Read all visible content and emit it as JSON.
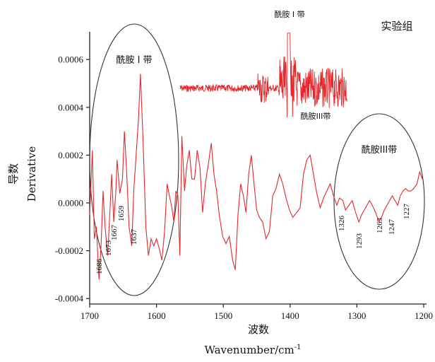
{
  "chart_data": {
    "type": "line",
    "title": "实验组",
    "xlabel_cn": "波数",
    "xlabel_en": "Wavenumber/cm",
    "xlabel_sup": "-1",
    "ylabel_cn": "导数",
    "ylabel_en": "Derivative",
    "xlim": [
      1700,
      1200
    ],
    "ylim": [
      -0.0004,
      0.0007
    ],
    "x_ticks": [
      1700,
      1600,
      1500,
      1400,
      1300,
      1200
    ],
    "x_tick_labels": [
      "1700",
      "1600",
      "1500",
      "1400",
      "1300",
      "1200"
    ],
    "y_ticks": [
      0.0006,
      0.0004,
      0.0002,
      0.0,
      -0.0002,
      -0.0004
    ],
    "y_tick_labels": [
      "0.0006",
      "0.0004",
      "0.0002",
      "0.0000",
      "-0.0002",
      "-0.0004"
    ],
    "line_color": "#e8262a",
    "series": [
      {
        "x": [
          1700,
          1696,
          1693,
          1690,
          1686,
          1683,
          1680,
          1677,
          1673,
          1670,
          1667,
          1664,
          1661,
          1659,
          1655,
          1651,
          1648,
          1645,
          1641,
          1637,
          1634,
          1630,
          1627,
          1624,
          1620,
          1616,
          1612,
          1608,
          1604,
          1600,
          1596,
          1592,
          1588,
          1584,
          1580,
          1577,
          1574,
          1571,
          1568,
          1565,
          1562,
          1558,
          1555,
          1551,
          1547,
          1543,
          1539,
          1535,
          1531,
          1527,
          1522,
          1518,
          1514,
          1510,
          1506,
          1501,
          1496,
          1491,
          1486,
          1482,
          1478,
          1474,
          1470,
          1466,
          1462,
          1458,
          1454,
          1450,
          1446,
          1441,
          1436,
          1431,
          1426,
          1421,
          1416,
          1411,
          1406,
          1401,
          1396,
          1390,
          1385,
          1380,
          1375,
          1370,
          1365,
          1360,
          1355,
          1350,
          1345,
          1340,
          1335,
          1330,
          1326,
          1321,
          1317,
          1312,
          1307,
          1302,
          1297,
          1293,
          1289,
          1285,
          1281,
          1277,
          1272,
          1267,
          1263,
          1259,
          1255,
          1251,
          1247,
          1243,
          1239,
          1235,
          1231,
          1227,
          1223,
          1219,
          1215,
          1210,
          1206,
          1202
        ],
        "y": [
          -5e-05,
          0.00022,
          -0.00015,
          -0.0001,
          -0.00032,
          -0.00018,
          5e-05,
          -0.0001,
          -0.00022,
          -5e-05,
          0.00012,
          -8e-05,
          4e-05,
          0.00018,
          4e-05,
          0.0001,
          0.0003,
          0.00015,
          -0.0001,
          -0.00018,
          5e-05,
          0.00022,
          0.00035,
          0.00054,
          0.00025,
          -0.0001,
          -0.00022,
          -0.00015,
          -0.00018,
          -0.00015,
          -0.00019,
          -0.00024,
          -0.00012,
          8e-05,
          2e-05,
          -2e-05,
          -8e-05,
          5e-05,
          3e-05,
          -0.00022,
          0.00028,
          5e-05,
          0.00015,
          0.00022,
          0.0001,
          0.0001,
          0.00022,
          0.00015,
          -4e-05,
          8e-05,
          0.00017,
          0.00025,
          0.00012,
          5e-05,
          -5e-05,
          -0.00014,
          -0.00017,
          -0.00014,
          -0.00024,
          -0.00028,
          -5e-05,
          8e-05,
          3e-05,
          -4e-05,
          0.00012,
          0.0002,
          8e-05,
          -3e-05,
          -6e-05,
          -8e-05,
          -0.00015,
          -0.00012,
          3e-05,
          6e-05,
          0.00012,
          8e-05,
          2e-05,
          -3e-05,
          -6e-05,
          -4e-05,
          -2e-05,
          0.00012,
          0.00018,
          0.0002,
          0.00012,
          4e-05,
          -2e-05,
          2e-05,
          5e-05,
          8e-05,
          3e-05,
          -1e-05,
          2e-05,
          1e-05,
          -3e-05,
          -1e-05,
          1e-05,
          -4e-05,
          -8e-05,
          -5e-05,
          -3e-05,
          -1e-05,
          1e-05,
          -1e-05,
          -4e-05,
          -8e-05,
          -6e-05,
          -3e-05,
          -1e-05,
          1e-05,
          3e-05,
          1e-05,
          -1e-05,
          3e-05,
          5e-05,
          6e-05,
          5e-05,
          5e-05,
          6e-05,
          8e-05,
          0.00013,
          0.0001
        ]
      }
    ],
    "inset": {
      "x_range": [
        1565,
        1315
      ],
      "baseline_y": 0.00048,
      "note_ami1": "酰胺 I 带",
      "note_ami3": "酰胺III带"
    },
    "ellipse_labels": [
      "酰胺 I 带",
      "酰胺III带"
    ],
    "peak_labels": [
      "1686",
      "1673",
      "1667",
      "1659",
      "1637",
      "1326",
      "1293",
      "1263",
      "1247",
      "1227"
    ]
  }
}
